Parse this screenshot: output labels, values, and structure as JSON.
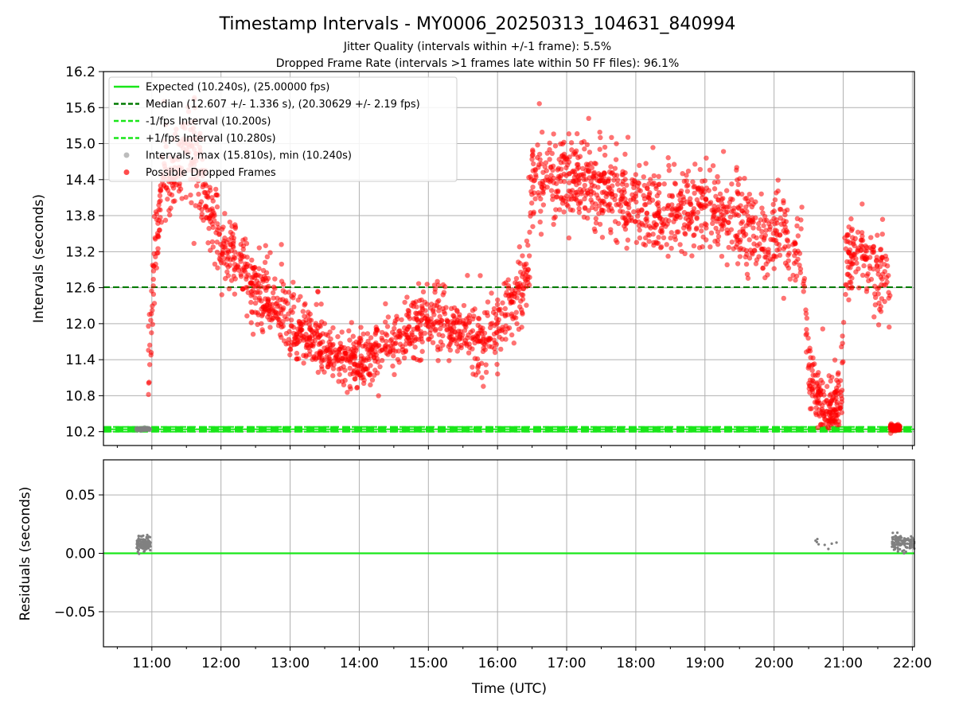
{
  "chart_data": {
    "type": "scatter",
    "title": "Timestamp Intervals - MY0006_20250313_104631_840994",
    "subtitle_1": "Jitter Quality (intervals within +/-1 frame): 5.5%",
    "subtitle_2": "Dropped Frame Rate (intervals >1 frames late within 50 FF files): 96.1%",
    "xlabel": "Time (UTC)",
    "x_ticks": [
      "11:00",
      "12:00",
      "13:00",
      "14:00",
      "15:00",
      "16:00",
      "17:00",
      "18:00",
      "19:00",
      "20:00",
      "21:00",
      "22:00"
    ],
    "x_range_hours": [
      10.3,
      22.03
    ],
    "top_panel": {
      "ylabel": "Intervals (seconds)",
      "ylim": [
        9.97,
        16.2
      ],
      "y_ticks": [
        "10.2",
        "10.8",
        "11.4",
        "12.0",
        "12.6",
        "13.2",
        "13.8",
        "14.4",
        "15.0",
        "15.6",
        "16.2"
      ],
      "reference_lines": {
        "expected": 10.24,
        "median": 12.607,
        "minus_one_fps": 10.2,
        "plus_one_fps": 10.28
      },
      "legend": [
        {
          "label": "Expected (10.240s), (25.00000 fps)",
          "style": "solid",
          "color": "#19e619"
        },
        {
          "label": "Median (12.607 +/- 1.336 s), (20.30629 +/- 2.19 fps)",
          "style": "dashed",
          "color": "#007a00"
        },
        {
          "label": "-1/fps Interval (10.200s)",
          "style": "dashed",
          "color": "#19e619"
        },
        {
          "label": "+1/fps Interval (10.280s)",
          "style": "dashed",
          "color": "#19e619"
        },
        {
          "label": "Intervals, max (15.810s), min (10.240s)",
          "style": "dot",
          "color": "#a0a0a0"
        },
        {
          "label": "Possible Dropped Frames",
          "style": "dot",
          "color": "#ff0000"
        }
      ],
      "legend_position": "upper-left",
      "dropped_frame_trend": [
        {
          "t": 10.95,
          "y": 10.9,
          "spread": 0.15
        },
        {
          "t": 10.98,
          "y": 11.6,
          "spread": 0.2
        },
        {
          "t": 11.02,
          "y": 12.6,
          "spread": 0.3
        },
        {
          "t": 11.08,
          "y": 13.6,
          "spread": 0.35
        },
        {
          "t": 11.15,
          "y": 14.3,
          "spread": 0.3
        },
        {
          "t": 11.4,
          "y": 14.7,
          "spread": 0.35
        },
        {
          "t": 11.6,
          "y": 14.9,
          "spread": 0.5
        },
        {
          "t": 11.8,
          "y": 14.0,
          "spread": 0.35
        },
        {
          "t": 12.0,
          "y": 13.3,
          "spread": 0.3
        },
        {
          "t": 12.3,
          "y": 13.0,
          "spread": 0.3
        },
        {
          "t": 12.6,
          "y": 12.5,
          "spread": 0.3
        },
        {
          "t": 13.0,
          "y": 12.0,
          "spread": 0.25
        },
        {
          "t": 13.5,
          "y": 11.6,
          "spread": 0.25
        },
        {
          "t": 14.0,
          "y": 11.3,
          "spread": 0.25
        },
        {
          "t": 14.5,
          "y": 11.7,
          "spread": 0.25
        },
        {
          "t": 14.9,
          "y": 12.1,
          "spread": 0.3
        },
        {
          "t": 15.3,
          "y": 12.0,
          "spread": 0.3
        },
        {
          "t": 15.7,
          "y": 11.7,
          "spread": 0.25
        },
        {
          "t": 16.0,
          "y": 11.9,
          "spread": 0.3
        },
        {
          "t": 16.3,
          "y": 12.5,
          "spread": 0.3
        },
        {
          "t": 16.45,
          "y": 12.8,
          "spread": 0.3
        },
        {
          "t": 16.5,
          "y": 14.4,
          "spread": 0.35
        },
        {
          "t": 17.0,
          "y": 14.5,
          "spread": 0.35
        },
        {
          "t": 17.5,
          "y": 14.2,
          "spread": 0.35
        },
        {
          "t": 18.0,
          "y": 13.9,
          "spread": 0.35
        },
        {
          "t": 18.5,
          "y": 13.8,
          "spread": 0.35
        },
        {
          "t": 19.0,
          "y": 14.0,
          "spread": 0.35
        },
        {
          "t": 19.5,
          "y": 13.6,
          "spread": 0.35
        },
        {
          "t": 20.0,
          "y": 13.5,
          "spread": 0.35
        },
        {
          "t": 20.4,
          "y": 13.3,
          "spread": 0.3
        },
        {
          "t": 20.5,
          "y": 11.2,
          "spread": 0.3
        },
        {
          "t": 20.6,
          "y": 10.8,
          "spread": 0.25
        },
        {
          "t": 20.8,
          "y": 10.7,
          "spread": 0.25
        },
        {
          "t": 20.98,
          "y": 10.8,
          "spread": 0.25
        },
        {
          "t": 21.02,
          "y": 13.1,
          "spread": 0.3
        },
        {
          "t": 21.3,
          "y": 13.2,
          "spread": 0.35
        },
        {
          "t": 21.6,
          "y": 12.8,
          "spread": 0.35
        },
        {
          "t": 21.68,
          "y": 12.4,
          "spread": 0.3
        }
      ],
      "dropped_frame_clusters": [
        {
          "t_start": 21.68,
          "t_end": 21.82,
          "y": 10.26,
          "spread": 0.03
        }
      ]
    },
    "bottom_panel": {
      "ylabel": "Residuals (seconds)",
      "ylim": [
        -0.08,
        0.08
      ],
      "y_ticks": [
        "0.05",
        "0.00",
        "−0.05"
      ],
      "y_tick_values": [
        0.05,
        0.0,
        -0.05
      ],
      "zero_line": 0.0,
      "residual_clusters": [
        {
          "t_start": 10.78,
          "t_end": 10.98,
          "y": 0.008,
          "spread": 0.003
        },
        {
          "t_start": 20.58,
          "t_end": 20.92,
          "y": 0.008,
          "spread": 0.003
        },
        {
          "t_start": 21.7,
          "t_end": 22.03,
          "y": 0.009,
          "spread": 0.003
        }
      ]
    },
    "colors": {
      "expected": "#19e619",
      "median": "#007a00",
      "dropped": "#ff0000",
      "interval": "#808080",
      "grid": "#b0b0b0"
    },
    "grid": true
  }
}
